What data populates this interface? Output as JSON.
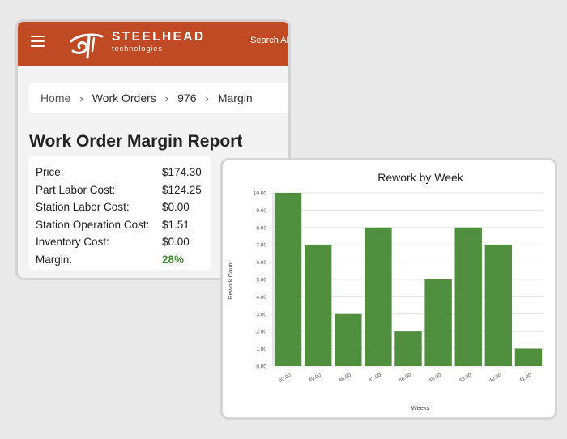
{
  "header": {
    "brand_name": "STEELHEAD",
    "brand_sub": "technologies",
    "search_label": "Search Al"
  },
  "breadcrumb": [
    "Home",
    "Work Orders",
    "976",
    "Margin"
  ],
  "report": {
    "title": "Work Order Margin Report",
    "rows": [
      {
        "label": "Price:",
        "value": "$174.30"
      },
      {
        "label": "Part Labor Cost:",
        "value": "$124.25"
      },
      {
        "label": "Station Labor Cost:",
        "value": "$0.00"
      },
      {
        "label": "Station Operation Cost:",
        "value": "$1.51"
      },
      {
        "label": "Inventory Cost:",
        "value": "$0.00"
      },
      {
        "label": "Margin:",
        "value": "28%"
      }
    ]
  },
  "colors": {
    "header": "#bf4a24",
    "bar": "#4f8f3e",
    "margin_positive": "#3f8f2e"
  },
  "chart_data": {
    "type": "bar",
    "title": "Rework by Week",
    "xlabel": "Weeks",
    "ylabel": "Rework Count",
    "categories": [
      "50.00",
      "49.00",
      "48.00",
      "47.00",
      "46.00",
      "45.00",
      "43.00",
      "42.00",
      "41.00"
    ],
    "values": [
      10,
      7,
      3,
      8,
      2,
      5,
      8,
      7,
      1
    ],
    "ylim": [
      0,
      10
    ],
    "yticks": [
      "0.00",
      "1.00",
      "2.00",
      "3.00",
      "4.00",
      "5.00",
      "6.00",
      "7.00",
      "8.00",
      "9.00",
      "10.00"
    ],
    "grid": true
  }
}
